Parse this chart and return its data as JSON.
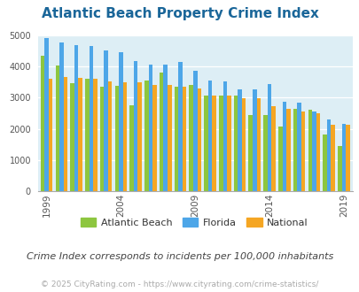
{
  "title": "Atlantic Beach Property Crime Index",
  "subtitle": "Crime Index corresponds to incidents per 100,000 inhabitants",
  "footer": "© 2025 CityRating.com - https://www.cityrating.com/crime-statistics/",
  "years": [
    1999,
    2000,
    2001,
    2002,
    2003,
    2004,
    2005,
    2006,
    2007,
    2008,
    2009,
    2010,
    2011,
    2012,
    2013,
    2014,
    2015,
    2016,
    2017,
    2018,
    2019
  ],
  "atlantic_beach": [
    4350,
    4020,
    3450,
    3600,
    3360,
    3370,
    2740,
    3540,
    3810,
    3360,
    3400,
    3050,
    3060,
    3060,
    2450,
    2450,
    2060,
    2650,
    2620,
    1830,
    1440
  ],
  "florida": [
    4900,
    4760,
    4680,
    4640,
    4500,
    4460,
    4170,
    4050,
    4050,
    4130,
    3870,
    3550,
    3530,
    3270,
    3270,
    3430,
    2870,
    2850,
    2560,
    2310,
    2160
  ],
  "national": [
    3590,
    3660,
    3620,
    3600,
    3520,
    3500,
    3490,
    3390,
    3390,
    3340,
    3280,
    3070,
    3070,
    2970,
    2970,
    2720,
    2640,
    2560,
    2490,
    2140,
    2120
  ],
  "bar_colors": {
    "atlantic_beach": "#8dc63f",
    "florida": "#4da6e8",
    "national": "#f5a623"
  },
  "bg_color": "#ddeef5",
  "ylim": [
    0,
    5000
  ],
  "yticks": [
    0,
    1000,
    2000,
    3000,
    4000,
    5000
  ],
  "xtick_years": [
    1999,
    2004,
    2009,
    2014,
    2019
  ],
  "title_color": "#1a6699",
  "subtitle_color": "#444444",
  "footer_color": "#aaaaaa",
  "title_fontsize": 11,
  "legend_fontsize": 8,
  "subtitle_fontsize": 8,
  "footer_fontsize": 6.5
}
